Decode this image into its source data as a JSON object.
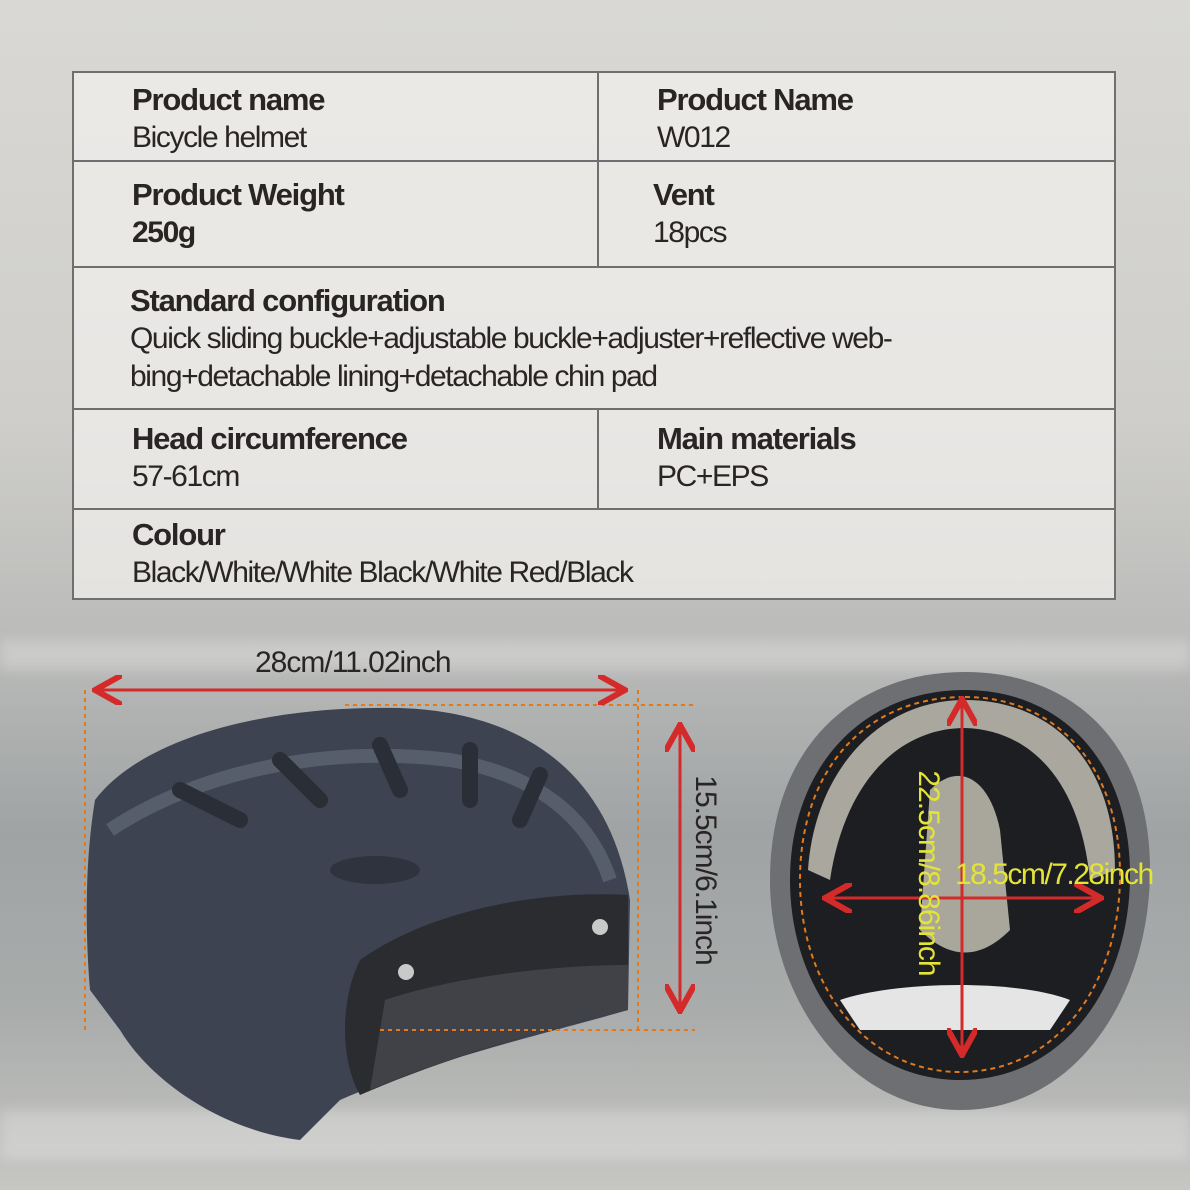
{
  "specs": {
    "product_name": {
      "label": "Product name",
      "value": "Bicycle helmet"
    },
    "model": {
      "label": "Product Name",
      "value": "W012"
    },
    "weight": {
      "label": "Product Weight",
      "value": "250g"
    },
    "vent": {
      "label": "Vent",
      "value": "18pcs"
    },
    "configuration": {
      "label": "Standard configuration",
      "value_line1": "Quick sliding buckle+adjustable buckle+adjuster+reflective web-",
      "value_line2": "bing+detachable lining+detachable chin pad"
    },
    "head_circumference": {
      "label": "Head circumference",
      "value": "57-61cm"
    },
    "materials": {
      "label": "Main materials",
      "value": "PC+EPS"
    },
    "colour": {
      "label": "Colour",
      "value": "Black/White/White Black/White Red/Black"
    }
  },
  "dimensions": {
    "length": "28cm/11.02inch",
    "height": "15.5cm/6.1inch",
    "inner_length": "22.5cm/8.86inch",
    "inner_width": "18.5cm/7.28inch"
  },
  "colors": {
    "arrow": "#d42a2a",
    "guide": "#e07a1e",
    "inner_label": "#e4e436",
    "helmet": "#3c4250"
  }
}
